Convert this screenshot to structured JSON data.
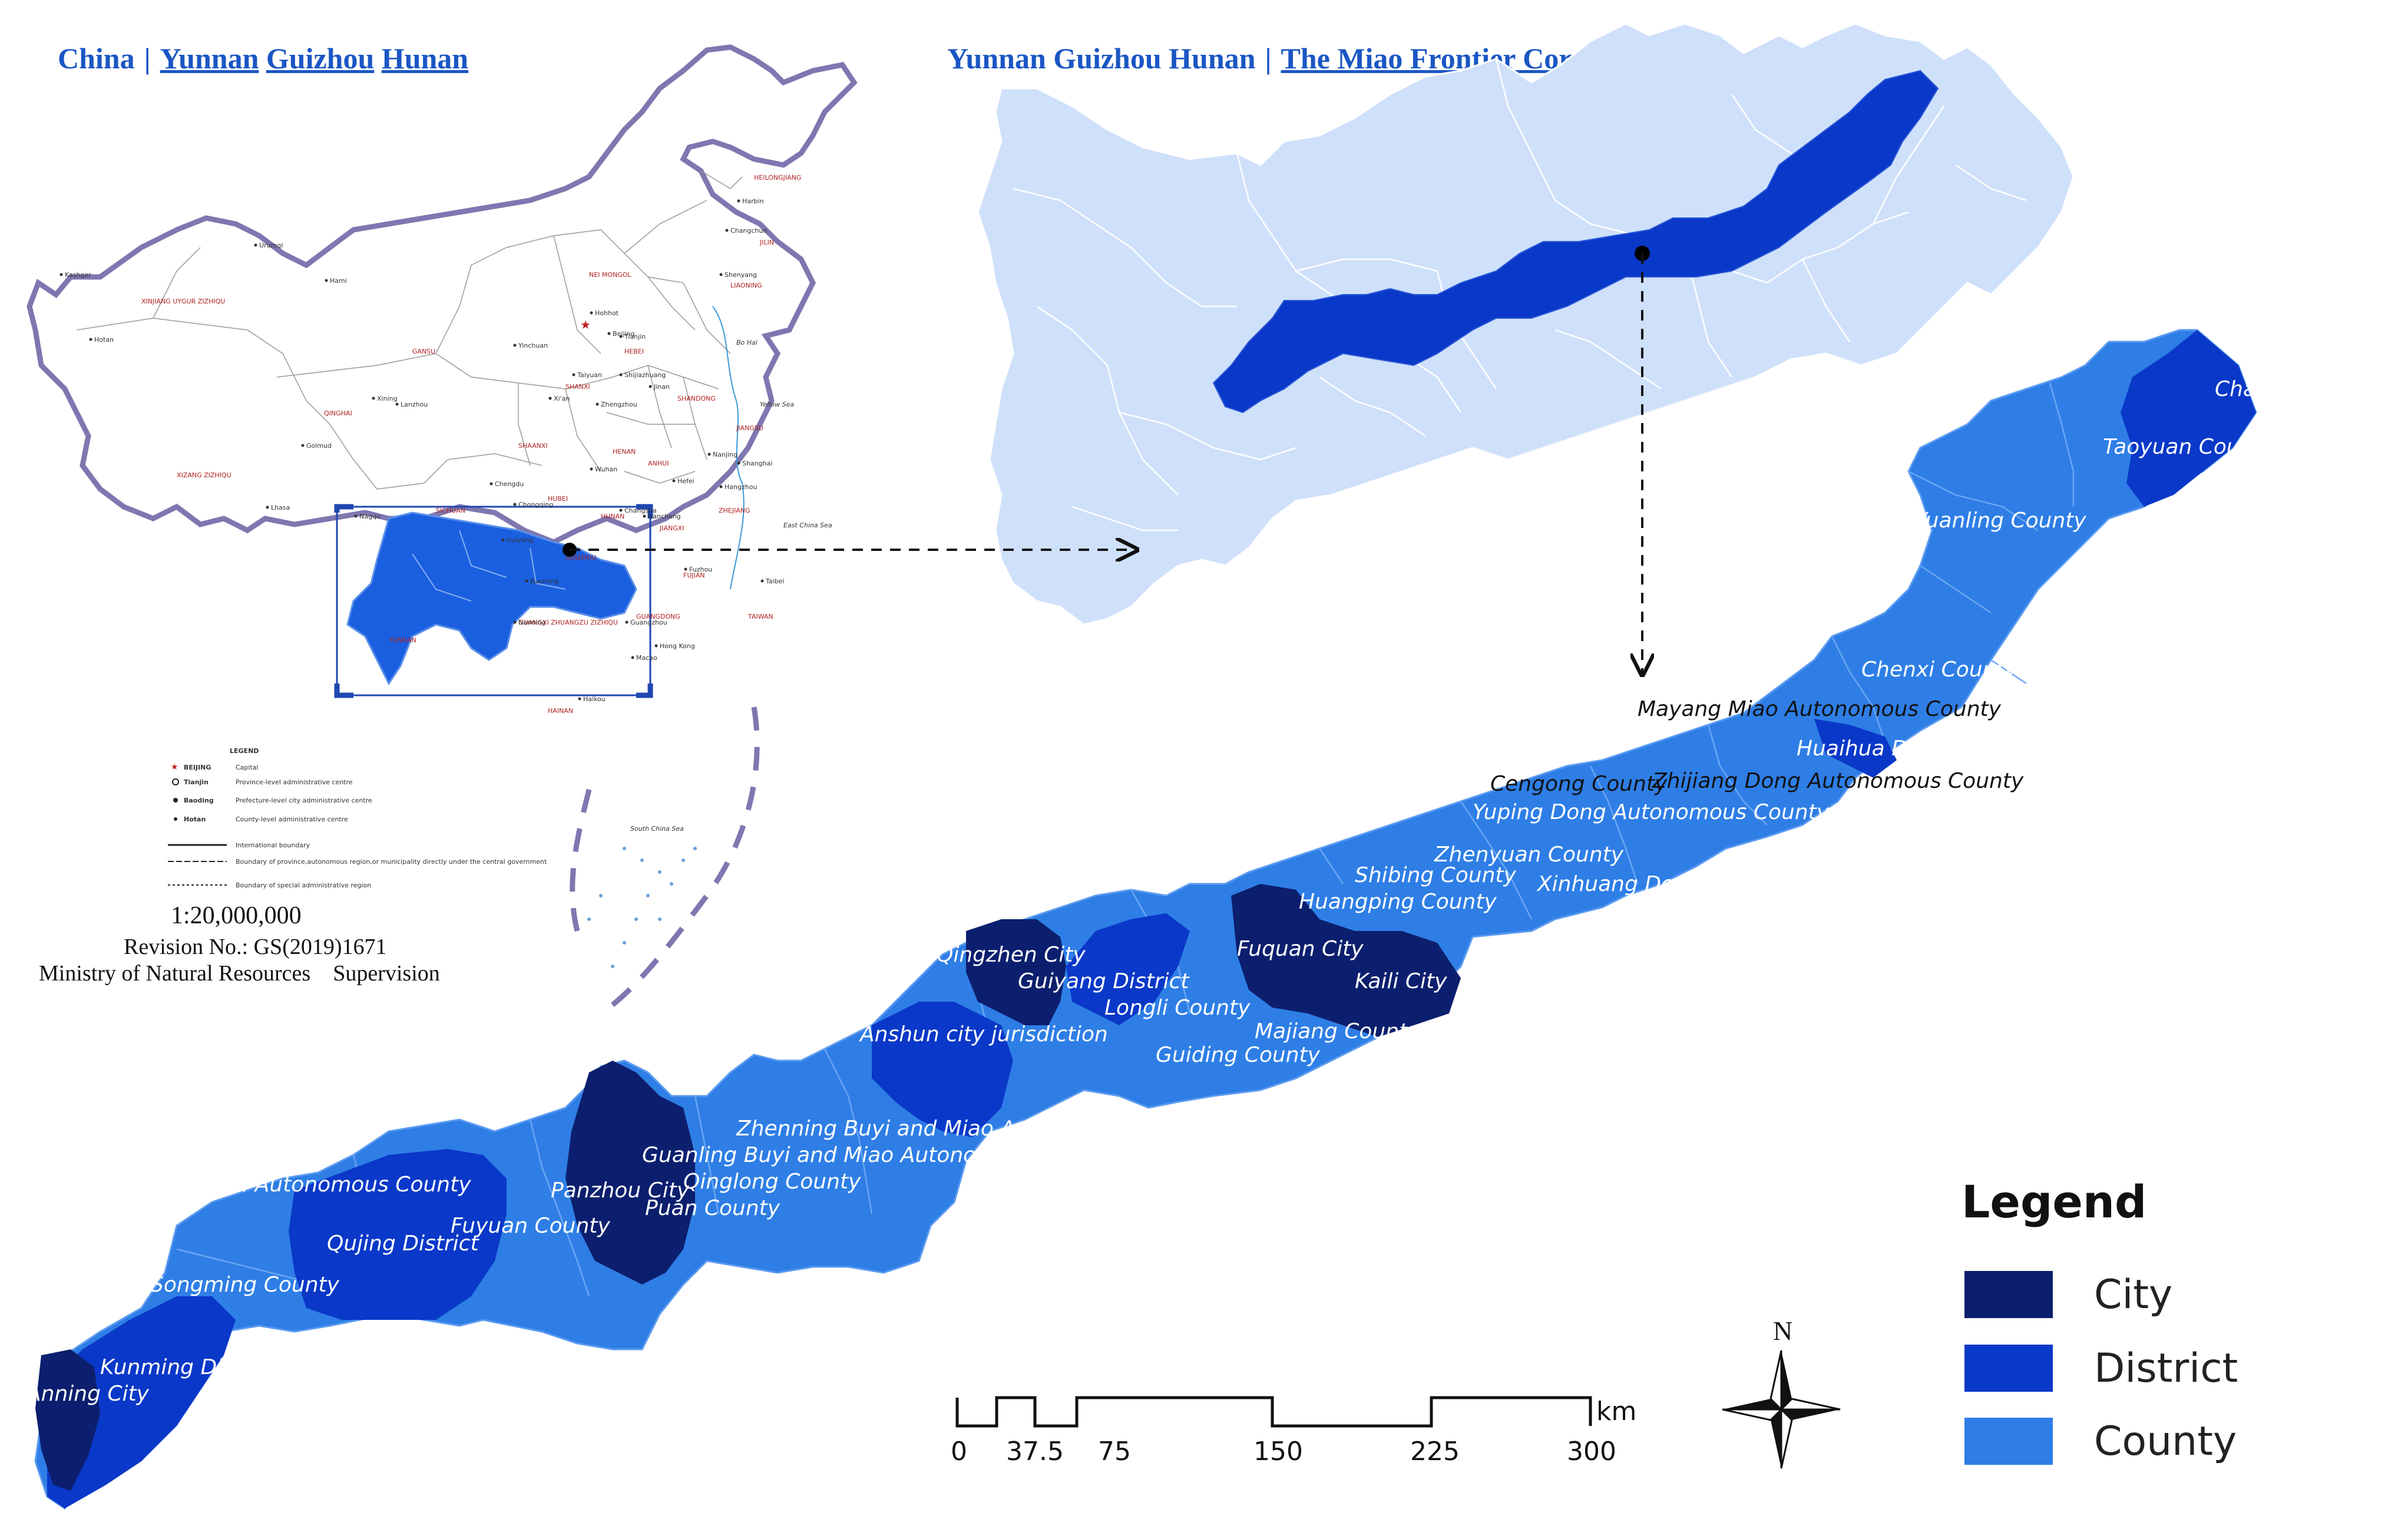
{
  "headers": {
    "left": {
      "a": "China",
      "sep": "|",
      "b": "Yunnan",
      "c": "Guizhou",
      "d": "Hunan"
    },
    "right": {
      "a": "Yunnan Guizhou Hunan",
      "sep": "|",
      "b": "The Miao Frontier Corridor"
    }
  },
  "inset_map": {
    "legend_title": "LEGEND",
    "legend_items": [
      {
        "sym": "BEIJING",
        "desc": "Capital"
      },
      {
        "sym": "Tianjin",
        "desc": "Province-level administrative centre"
      },
      {
        "sym": "Baoding",
        "desc": "Prefecture-level city administrative centre"
      },
      {
        "sym": "Hotan",
        "desc": "County-level administrative centre"
      },
      {
        "sym": "",
        "desc": "International boundary"
      },
      {
        "sym": "",
        "desc": "Boundary of province,autonomous region,or municipality directly under the central government"
      },
      {
        "sym": "",
        "desc": "Boundary of special administrative region"
      }
    ],
    "scale": "1:20,000,000",
    "revision": "Revision No.: GS(2019)1671",
    "ministry": "Ministry of Natural Resources",
    "supervision": "Supervision",
    "regions": [
      "XINJIANG UYGUR ZIZHIQU",
      "QINGHAI",
      "XIZANG ZIZHIQU",
      "SICHUAN",
      "GANSU",
      "NEI MONGOL",
      "HEILONGJIANG",
      "JILIN",
      "LIAONING",
      "HEBEI",
      "SHANXI",
      "SHAANXI",
      "HENAN",
      "SHANDONG",
      "HUBEI",
      "ANHUI",
      "JIANGSU",
      "HUNAN",
      "JIANGXI",
      "ZHEJIANG",
      "FUJIAN",
      "GUANGDONG",
      "GUANGXI ZHUANGZU ZIZHIQU",
      "YUNNAN",
      "GUIZHOU",
      "HAINAN",
      "TAIWAN"
    ],
    "cities": [
      "Urumqi",
      "Lhasa",
      "Lanzhou",
      "Xining",
      "Beijing",
      "Harbin",
      "Changchun",
      "Shenyang",
      "Hohhot",
      "Taiyuan",
      "Xi'an",
      "Zhengzhou",
      "Wuhan",
      "Changsha",
      "Chongqing",
      "Chengdu",
      "Guiyang",
      "Kunming",
      "Nanning",
      "Guangzhou",
      "Fuzhou",
      "Nanchang",
      "Hefei",
      "Nanjing",
      "Shanghai",
      "Hangzhou",
      "Jinan",
      "Shijiazhuang",
      "Tianjin",
      "Hong Kong",
      "Macao",
      "Haikou",
      "Taibei",
      "Yinchuan",
      "Hami",
      "Kashgar",
      "Hotan",
      "Golmud",
      "Nagqu"
    ],
    "seas": [
      "Bo Hai",
      "Yellow Sea",
      "East China Sea",
      "South China Sea"
    ]
  },
  "corridor_labels": [
    "Changde District",
    "Taoyuan County",
    "Yuanling County",
    "Chenxi County",
    "Mayang Miao Autonomous County",
    "Huaihua District",
    "Zhijiang Dong Autonomous County",
    "Cengong County",
    "Yuping Dong Autonomous County",
    "Zhenyuan County",
    "Shibing County",
    "Xinhuang Dong Autonomous County",
    "Huangping County",
    "Fuquan City",
    "Kaili City",
    "Qingzhen City",
    "Guiyang District",
    "Longli County",
    "Majiang County",
    "Guiding County",
    "Anshun city jurisdiction",
    "Zhenning Buyi and Miao Autonomous County",
    "Guanling Buyi and Miao Autonomous County",
    "Qinglong County",
    "Puan County",
    "Panzhou City",
    "Fuyuan County",
    "Xundian Hui and Yi Autonomous County",
    "Qujing District",
    "Songming County",
    "Kunming District",
    "Anning City"
  ],
  "legend": {
    "title": "Legend",
    "items": [
      {
        "label": "City",
        "color": "#0c1f6e"
      },
      {
        "label": "District",
        "color": "#0a38c8"
      },
      {
        "label": "County",
        "color": "#2e7ee6"
      }
    ]
  },
  "scale_bar": {
    "ticks": [
      "0",
      "37.5",
      "75",
      "150",
      "225",
      "300"
    ],
    "unit": "km"
  },
  "north_arrow": {
    "label": "N"
  },
  "colors": {
    "city": "#0c1f6e",
    "district": "#0a38c8",
    "county": "#2e7ee6",
    "province_fill": "#cfe0fa",
    "highlight": "#1a5fe0",
    "header": "#1a56c4"
  }
}
